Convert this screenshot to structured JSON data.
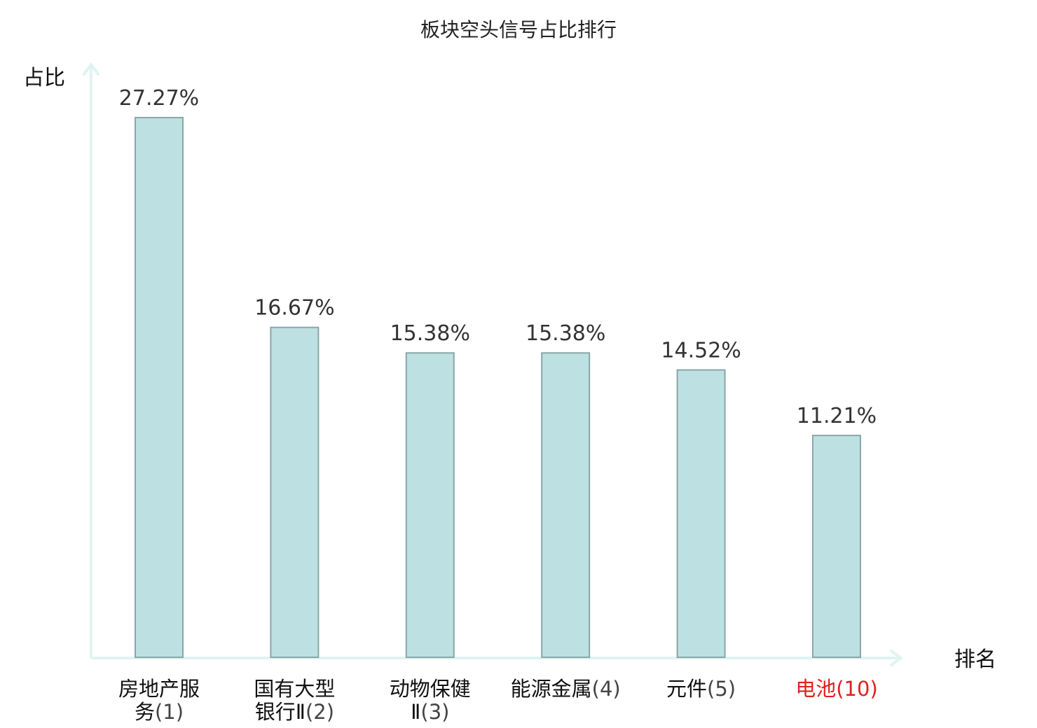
{
  "chart_data": {
    "type": "bar",
    "title": "板块空头信号占比排行",
    "ylabel": "占比",
    "xlabel": "排名",
    "ylim": [
      0,
      30
    ],
    "grid": false,
    "categories": [
      {
        "lines": [
          {
            "name": "房地产服",
            "rank": ""
          },
          {
            "name": "务",
            "rank": "(1)"
          }
        ],
        "highlight": false
      },
      {
        "lines": [
          {
            "name": "国有大型",
            "rank": ""
          },
          {
            "name": "银行Ⅱ",
            "rank": "(2)"
          }
        ],
        "highlight": false
      },
      {
        "lines": [
          {
            "name": "动物保健",
            "rank": ""
          },
          {
            "name": "Ⅱ",
            "rank": "(3)"
          }
        ],
        "highlight": false
      },
      {
        "lines": [
          {
            "name": "能源金属",
            "rank": "(4)"
          }
        ],
        "highlight": false
      },
      {
        "lines": [
          {
            "name": "元件",
            "rank": "(5)"
          }
        ],
        "highlight": false
      },
      {
        "lines": [
          {
            "name": "电池",
            "rank": "(10)"
          }
        ],
        "highlight": true
      }
    ],
    "values": [
      27.27,
      16.67,
      15.38,
      15.38,
      14.52,
      11.21
    ],
    "value_labels": [
      "27.27%",
      "16.67%",
      "15.38%",
      "15.38%",
      "14.52%",
      "11.21%"
    ],
    "colors": {
      "bar_fill": "#bde0e3",
      "bar_stroke": "#8aa6a8",
      "axis": "#e0f3f1",
      "highlight_label": "#e02020"
    }
  }
}
